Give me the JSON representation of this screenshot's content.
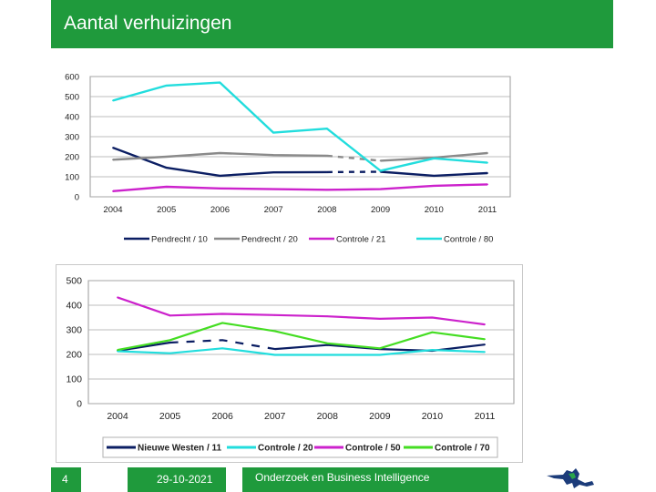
{
  "header": {
    "title": "Aantal verhuizingen"
  },
  "footer": {
    "slide_number": "4",
    "date": "29-10-2021",
    "department": "Onderzoek en Business Intelligence"
  },
  "chart_data": [
    {
      "type": "line",
      "title": "",
      "xlabel": "",
      "ylabel": "",
      "x": [
        "2004",
        "2005",
        "2006",
        "2007",
        "2008",
        "2009",
        "2010",
        "2011"
      ],
      "ylim": [
        0,
        600
      ],
      "yticks": [
        0,
        100,
        200,
        300,
        400,
        500,
        600
      ],
      "ytick_labels": [
        "0",
        "100",
        "200",
        "300",
        "400",
        "500",
        "600"
      ],
      "legend_position": "bottom",
      "series": [
        {
          "name": "Pendrecht / 10",
          "color": "#0b1e63",
          "values": [
            245,
            145,
            105,
            122,
            123,
            125,
            105,
            118
          ],
          "dashed_segments": [
            [
              4,
              5
            ]
          ]
        },
        {
          "name": "Pendrecht / 20",
          "color": "#8a8a8a",
          "values": [
            185,
            200,
            218,
            208,
            205,
            180,
            195,
            218
          ],
          "dashed_segments": [
            [
              4,
              5
            ]
          ]
        },
        {
          "name": "Controle / 21",
          "color": "#cc22cc",
          "values": [
            28,
            50,
            42,
            38,
            35,
            38,
            55,
            62
          ],
          "dashed_segments": []
        },
        {
          "name": "Controle / 80",
          "color": "#22dddd",
          "values": [
            480,
            555,
            570,
            320,
            340,
            130,
            192,
            170
          ],
          "dashed_segments": []
        }
      ]
    },
    {
      "type": "line",
      "title": "",
      "xlabel": "",
      "ylabel": "",
      "x": [
        "2004",
        "2005",
        "2006",
        "2007",
        "2008",
        "2009",
        "2010",
        "2011"
      ],
      "ylim": [
        0,
        500
      ],
      "yticks": [
        0,
        100,
        200,
        300,
        400,
        500
      ],
      "ytick_labels": [
        "0",
        "100",
        "200",
        "300",
        "400",
        "500"
      ],
      "legend_position": "bottom",
      "series": [
        {
          "name": "Nieuwe Westen / 11",
          "color": "#0b1e63",
          "values": [
            215,
            248,
            258,
            222,
            238,
            222,
            215,
            240
          ],
          "dashed_segments": [
            [
              1,
              2
            ],
            [
              2,
              3
            ]
          ]
        },
        {
          "name": "Controle / 20",
          "color": "#22dddd",
          "values": [
            213,
            205,
            225,
            198,
            198,
            198,
            218,
            210
          ],
          "dashed_segments": []
        },
        {
          "name": "Controle / 50",
          "color": "#cc22cc",
          "values": [
            432,
            358,
            365,
            360,
            355,
            345,
            350,
            322
          ],
          "dashed_segments": []
        },
        {
          "name": "Controle / 70",
          "color": "#44dd22",
          "values": [
            218,
            258,
            328,
            295,
            245,
            225,
            290,
            262
          ],
          "dashed_segments": []
        }
      ]
    }
  ]
}
